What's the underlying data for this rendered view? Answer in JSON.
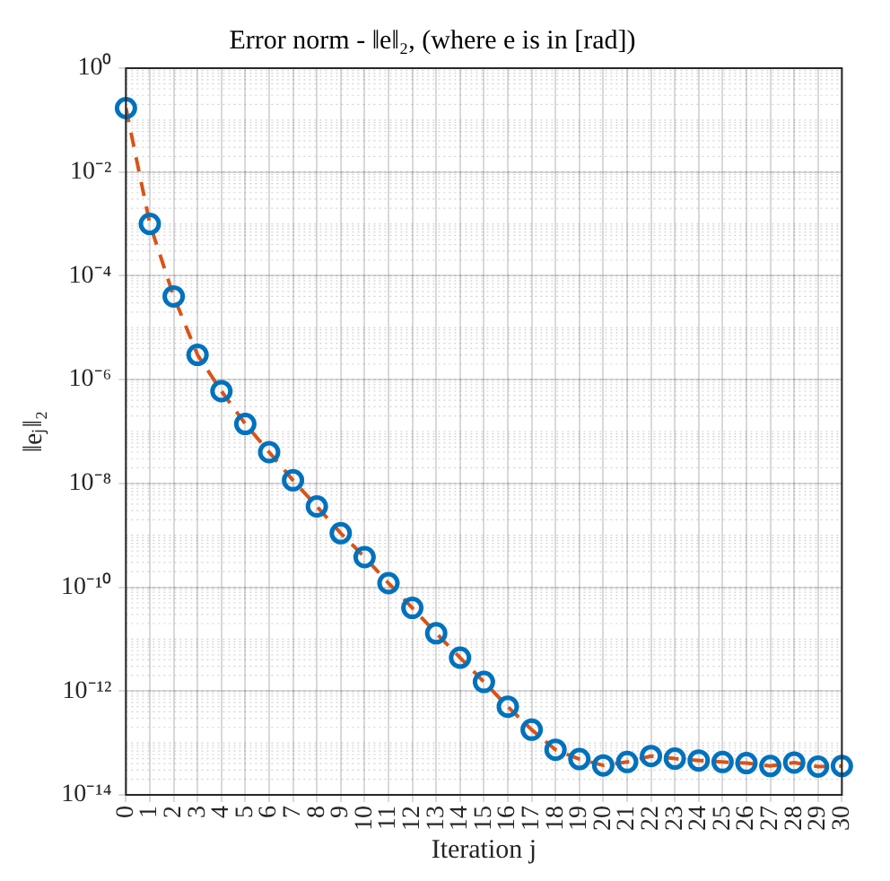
{
  "chart_data": {
    "type": "line",
    "title": "Error norm - ‖e‖₂, (where e is in [rad])",
    "xlabel": "Iteration j",
    "ylabel": "‖eⱼ‖₂",
    "x": [
      0,
      1,
      2,
      3,
      4,
      5,
      6,
      7,
      8,
      9,
      10,
      11,
      12,
      13,
      14,
      15,
      16,
      17,
      18,
      19,
      20,
      21,
      22,
      23,
      24,
      25,
      26,
      27,
      28,
      29,
      30
    ],
    "series": [
      {
        "type": "line",
        "color": "#d95319",
        "line_style": "dashed",
        "marker": "none",
        "values": [
          0.17,
          0.001,
          4e-05,
          3e-06,
          6e-07,
          1.4e-07,
          4e-08,
          1.15e-08,
          3.6e-09,
          1.1e-09,
          3.8e-10,
          1.2e-10,
          4e-11,
          1.3e-11,
          4.4e-12,
          1.5e-12,
          5e-13,
          1.8e-13,
          7.4e-14,
          4.9e-14,
          3.7e-14,
          4.3e-14,
          5.6e-14,
          5e-14,
          4.6e-14,
          4.3e-14,
          4.1e-14,
          3.6e-14,
          4.2e-14,
          3.5e-14,
          3.6e-14
        ]
      },
      {
        "type": "scatter",
        "color": "#0072bd",
        "marker": "circle",
        "values": [
          0.17,
          0.001,
          4e-05,
          3e-06,
          6e-07,
          1.4e-07,
          4e-08,
          1.15e-08,
          3.6e-09,
          1.1e-09,
          3.8e-10,
          1.2e-10,
          4e-11,
          1.3e-11,
          4.4e-12,
          1.5e-12,
          5e-13,
          1.8e-13,
          7.4e-14,
          4.9e-14,
          3.7e-14,
          4.3e-14,
          5.6e-14,
          5e-14,
          4.6e-14,
          4.3e-14,
          4.1e-14,
          3.6e-14,
          4.2e-14,
          3.5e-14,
          3.6e-14
        ]
      }
    ],
    "log": "y",
    "grid": true,
    "legend": false,
    "xlim": [
      0,
      30
    ],
    "xticks": [
      0,
      1,
      2,
      3,
      4,
      5,
      6,
      7,
      8,
      9,
      10,
      11,
      12,
      13,
      14,
      15,
      16,
      17,
      18,
      19,
      20,
      21,
      22,
      23,
      24,
      25,
      26,
      27,
      28,
      29,
      30
    ],
    "ylim": [
      1e-14,
      1
    ],
    "yticks": [
      {
        "value": 1e-14,
        "label": "10⁻¹⁴"
      },
      {
        "value": 1e-12,
        "label": "10⁻¹²"
      },
      {
        "value": 1e-10,
        "label": "10⁻¹⁰"
      },
      {
        "value": 1e-08,
        "label": "10⁻⁸"
      },
      {
        "value": 1e-06,
        "label": "10⁻⁶"
      },
      {
        "value": 0.0001,
        "label": "10⁻⁴"
      },
      {
        "value": 0.01,
        "label": "10⁻²"
      },
      {
        "value": 1,
        "label": "10⁰"
      }
    ]
  }
}
